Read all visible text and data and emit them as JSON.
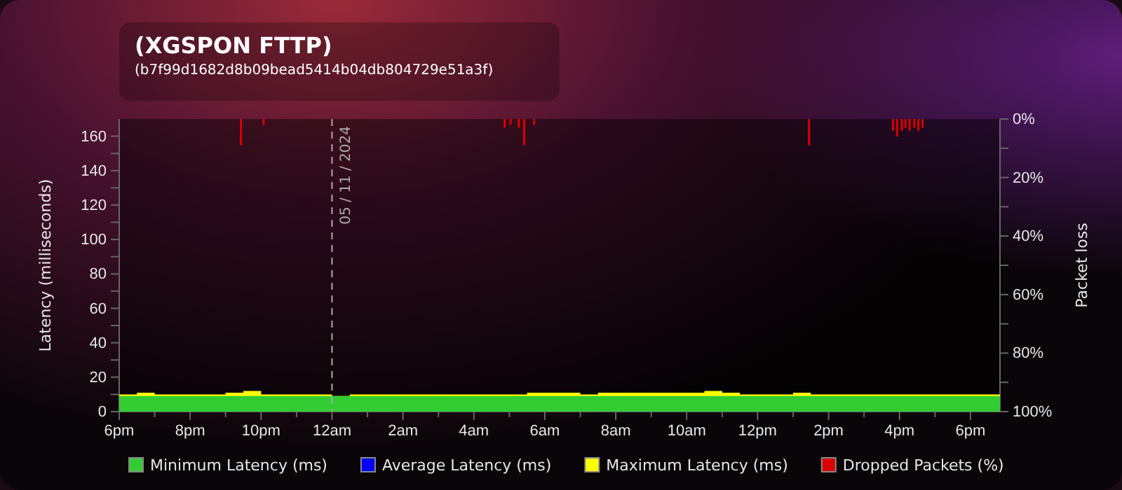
{
  "chart_data": {
    "type": "area",
    "title": "(XGSPON FTTP)",
    "subtitle": "(b7f99d1682d8b09bead5414b04db804729e51a3f)",
    "ylabel": "Latency (milliseconds)",
    "y2label": "Packet loss",
    "xlim": [
      "2024-11-04T18:00",
      "2024-11-05T18:50"
    ],
    "xticks": [
      {
        "value": "2024-11-04T18:00",
        "label": "6pm"
      },
      {
        "value": "2024-11-04T19:00",
        "label": null
      },
      {
        "value": "2024-11-04T20:00",
        "label": "8pm"
      },
      {
        "value": "2024-11-04T21:00",
        "label": null
      },
      {
        "value": "2024-11-04T22:00",
        "label": "10pm"
      },
      {
        "value": "2024-11-04T23:00",
        "label": null
      },
      {
        "value": "2024-11-05T00:00",
        "label": "12am"
      },
      {
        "value": "2024-11-05T01:00",
        "label": null
      },
      {
        "value": "2024-11-05T02:00",
        "label": "2am"
      },
      {
        "value": "2024-11-05T03:00",
        "label": null
      },
      {
        "value": "2024-11-05T04:00",
        "label": "4am"
      },
      {
        "value": "2024-11-05T05:00",
        "label": null
      },
      {
        "value": "2024-11-05T06:00",
        "label": "6am"
      },
      {
        "value": "2024-11-05T07:00",
        "label": null
      },
      {
        "value": "2024-11-05T08:00",
        "label": "8am"
      },
      {
        "value": "2024-11-05T09:00",
        "label": null
      },
      {
        "value": "2024-11-05T10:00",
        "label": "10am"
      },
      {
        "value": "2024-11-05T11:00",
        "label": null
      },
      {
        "value": "2024-11-05T12:00",
        "label": "12pm"
      },
      {
        "value": "2024-11-05T13:00",
        "label": null
      },
      {
        "value": "2024-11-05T14:00",
        "label": "2pm"
      },
      {
        "value": "2024-11-05T15:00",
        "label": null
      },
      {
        "value": "2024-11-05T16:00",
        "label": "4pm"
      },
      {
        "value": "2024-11-05T17:00",
        "label": null
      },
      {
        "value": "2024-11-05T18:00",
        "label": "6pm"
      }
    ],
    "ylim": [
      0,
      170
    ],
    "yticks": [
      0,
      {
        "value": 10,
        "label": null
      },
      20,
      {
        "value": 30,
        "label": null
      },
      40,
      {
        "value": 50,
        "label": null
      },
      60,
      {
        "value": 70,
        "label": null
      },
      80,
      {
        "value": 90,
        "label": null
      },
      100,
      {
        "value": 110,
        "label": null
      },
      120,
      {
        "value": 130,
        "label": null
      },
      140,
      {
        "value": 150,
        "label": null
      },
      160
    ],
    "y2lim": [
      100,
      0
    ],
    "y2ticks": [
      {
        "value": 0,
        "label": "0%"
      },
      {
        "value": 10,
        "label": null
      },
      {
        "value": 20,
        "label": "20%"
      },
      {
        "value": 30,
        "label": null
      },
      {
        "value": 40,
        "label": "40%"
      },
      {
        "value": 50,
        "label": null
      },
      {
        "value": 60,
        "label": "60%"
      },
      {
        "value": 70,
        "label": null
      },
      {
        "value": 80,
        "label": "80%"
      },
      {
        "value": 90,
        "label": null
      },
      {
        "value": 100,
        "label": "100%"
      }
    ],
    "grid": false,
    "legend": "bottom",
    "ref_lines": [
      {
        "axis": "x",
        "value": "2024-11-05T00:00",
        "label": "05 / 11 / 2024",
        "color": "#aaaaaa",
        "line_style": "dashed"
      }
    ],
    "series": [
      {
        "name": "Minimum Latency (ms)",
        "color": "#33cc33",
        "x": [
          "2024-11-04T18:00",
          "2024-11-05T18:50"
        ],
        "values": [
          9,
          9
        ]
      },
      {
        "name": "Average Latency (ms)",
        "type": "line",
        "color": "#0000ff"
      },
      {
        "name": "Maximum Latency (ms)",
        "color": "#ffff00",
        "x": [
          "2024-11-04T18:00",
          "2024-11-04T18:30",
          "2024-11-04T19:00",
          "2024-11-04T19:30",
          "2024-11-04T20:00",
          "2024-11-04T20:30",
          "2024-11-04T21:00",
          "2024-11-04T21:30",
          "2024-11-04T22:00",
          "2024-11-04T22:30",
          "2024-11-04T23:00",
          "2024-11-04T23:30",
          "2024-11-05T00:00",
          "2024-11-05T00:30",
          "2024-11-05T01:00",
          "2024-11-05T01:30",
          "2024-11-05T02:00",
          "2024-11-05T02:30",
          "2024-11-05T03:00",
          "2024-11-05T03:30",
          "2024-11-05T04:00",
          "2024-11-05T04:30",
          "2024-11-05T05:00",
          "2024-11-05T05:30",
          "2024-11-05T06:00",
          "2024-11-05T06:30",
          "2024-11-05T07:00",
          "2024-11-05T07:30",
          "2024-11-05T08:00",
          "2024-11-05T08:30",
          "2024-11-05T09:00",
          "2024-11-05T09:30",
          "2024-11-05T10:00",
          "2024-11-05T10:30",
          "2024-11-05T11:00",
          "2024-11-05T11:30",
          "2024-11-05T12:00",
          "2024-11-05T12:30",
          "2024-11-05T13:00",
          "2024-11-05T13:30",
          "2024-11-05T14:00",
          "2024-11-05T14:30",
          "2024-11-05T15:00",
          "2024-11-05T15:30",
          "2024-11-05T16:00",
          "2024-11-05T16:30",
          "2024-11-05T17:00",
          "2024-11-05T17:30",
          "2024-11-05T18:00",
          "2024-11-05T18:30",
          "2024-11-05T18:50"
        ],
        "values": [
          10,
          11,
          10,
          10,
          10,
          10,
          11,
          12,
          10,
          10,
          10,
          10,
          9,
          10,
          10,
          10,
          10,
          10,
          10,
          10,
          10,
          10,
          10,
          11,
          11,
          11,
          10,
          11,
          11,
          11,
          11,
          11,
          11,
          12,
          11,
          10,
          10,
          10,
          11,
          10,
          10,
          10,
          10,
          10,
          10,
          10,
          10,
          10,
          10,
          10,
          10
        ]
      },
      {
        "name": "Dropped Packets (%)",
        "type": "bar",
        "axis": "y2",
        "color": "#dd0000",
        "x": [
          "2024-11-04T21:26",
          "2024-11-04T22:04",
          "2024-11-05T04:52",
          "2024-11-05T05:02",
          "2024-11-05T05:16",
          "2024-11-05T05:25",
          "2024-11-05T05:42",
          "2024-11-05T13:27",
          "2024-11-05T15:49",
          "2024-11-05T15:56",
          "2024-11-05T16:04",
          "2024-11-05T16:10",
          "2024-11-05T16:17",
          "2024-11-05T16:25",
          "2024-11-05T16:32",
          "2024-11-05T16:39"
        ],
        "values": [
          9,
          2,
          3,
          2,
          3,
          9,
          2,
          9,
          4,
          6,
          4,
          3,
          4,
          3,
          4,
          3
        ]
      }
    ]
  }
}
